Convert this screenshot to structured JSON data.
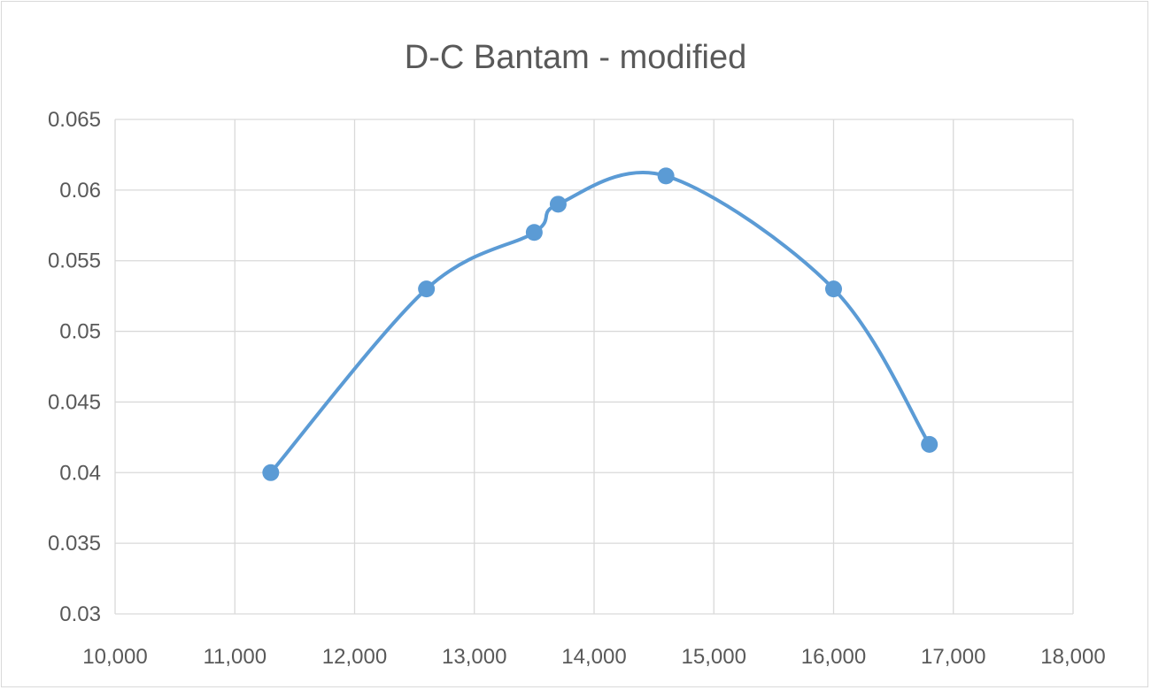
{
  "chart_data": {
    "type": "line",
    "title": "D-C Bantam - modified",
    "xlabel": "",
    "ylabel": "",
    "smooth": true,
    "markers": true,
    "grid": true,
    "legend": "none",
    "xlim": [
      10000,
      18000
    ],
    "ylim": [
      0.03,
      0.065
    ],
    "x_ticks": [
      10000,
      11000,
      12000,
      13000,
      14000,
      15000,
      16000,
      17000,
      18000
    ],
    "x_tick_labels": [
      "10,000",
      "11,000",
      "12,000",
      "13,000",
      "14,000",
      "15,000",
      "16,000",
      "17,000",
      "18,000"
    ],
    "y_ticks": [
      0.03,
      0.035,
      0.04,
      0.045,
      0.05,
      0.055,
      0.06,
      0.065
    ],
    "y_tick_labels": [
      "0.03",
      "0.035",
      "0.04",
      "0.045",
      "0.05",
      "0.055",
      "0.06",
      "0.065"
    ],
    "series": [
      {
        "color": "#5b9bd5",
        "x": [
          11300,
          12600,
          13500,
          13700,
          14600,
          16000,
          16800
        ],
        "y": [
          0.04,
          0.053,
          0.057,
          0.059,
          0.061,
          0.053,
          0.042
        ]
      }
    ]
  }
}
